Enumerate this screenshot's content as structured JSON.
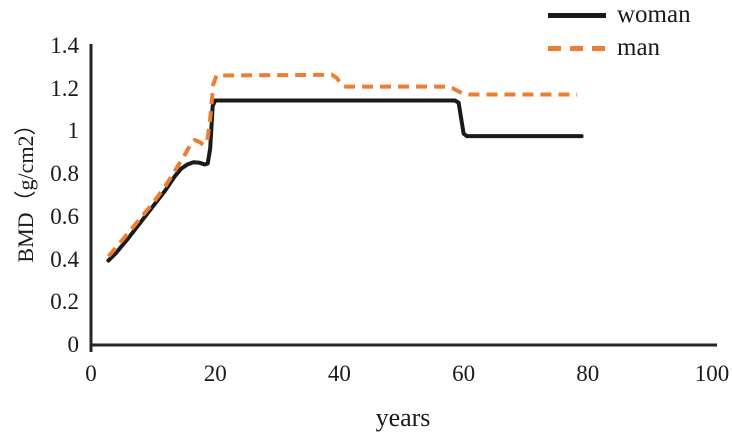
{
  "chart_data": {
    "type": "line",
    "title": "",
    "xlabel": "years",
    "ylabel": "BMD（g/cm2）",
    "xlim": [
      0,
      100
    ],
    "ylim": [
      0,
      1.4
    ],
    "x_ticks": [
      "0",
      "20",
      "40",
      "60",
      "80",
      "100"
    ],
    "y_ticks": [
      "0",
      "0.2",
      "0.4",
      "0.6",
      "0.8",
      "1",
      "1.2",
      "1.4"
    ],
    "grid": false,
    "legend_position": "top-right",
    "axis_color": "#262626",
    "series": [
      {
        "name": "woman",
        "color": "#1a1a1a",
        "dash": "solid",
        "points": [
          [
            2.8,
            0.395
          ],
          [
            4,
            0.43
          ],
          [
            6,
            0.5
          ],
          [
            8,
            0.575
          ],
          [
            10,
            0.65
          ],
          [
            12,
            0.725
          ],
          [
            13.5,
            0.79
          ],
          [
            14.5,
            0.825
          ],
          [
            15.5,
            0.845
          ],
          [
            16.5,
            0.856
          ],
          [
            17.5,
            0.853
          ],
          [
            18.3,
            0.845
          ],
          [
            18.8,
            0.85
          ],
          [
            19.2,
            0.92
          ],
          [
            19.6,
            1.12
          ],
          [
            20,
            1.145
          ],
          [
            58.6,
            1.145
          ],
          [
            59.2,
            1.135
          ],
          [
            60,
            0.99
          ],
          [
            60.5,
            0.978
          ],
          [
            79,
            0.978
          ]
        ]
      },
      {
        "name": "man",
        "color": "#ED7D31",
        "dash": "dashed",
        "points": [
          [
            2.8,
            0.415
          ],
          [
            4,
            0.455
          ],
          [
            6,
            0.525
          ],
          [
            8,
            0.595
          ],
          [
            10,
            0.665
          ],
          [
            12,
            0.745
          ],
          [
            13.5,
            0.815
          ],
          [
            15,
            0.885
          ],
          [
            16,
            0.938
          ],
          [
            16.7,
            0.96
          ],
          [
            17.4,
            0.952
          ],
          [
            18.1,
            0.938
          ],
          [
            18.7,
            0.95
          ],
          [
            19.2,
            1.06
          ],
          [
            19.7,
            1.22
          ],
          [
            20.2,
            1.262
          ],
          [
            38.8,
            1.265
          ],
          [
            39.6,
            1.25
          ],
          [
            40.4,
            1.215
          ],
          [
            41,
            1.21
          ],
          [
            57.3,
            1.21
          ],
          [
            58.2,
            1.203
          ],
          [
            59.8,
            1.178
          ],
          [
            61,
            1.173
          ],
          [
            78.3,
            1.173
          ]
        ]
      }
    ]
  }
}
